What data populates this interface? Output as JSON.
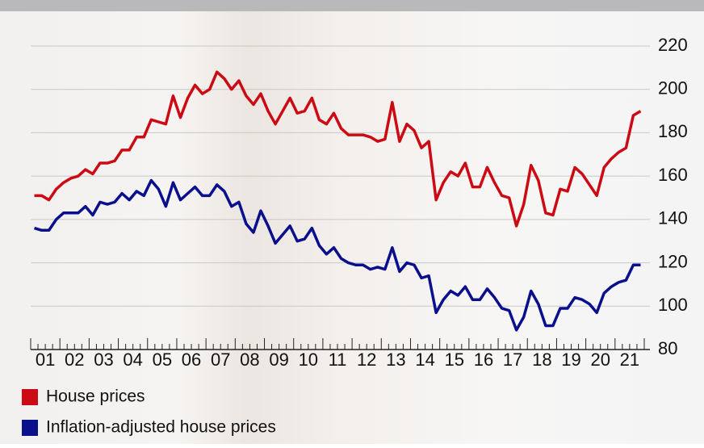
{
  "chart_data": {
    "type": "line",
    "x": [
      2001.125,
      2001.375,
      2001.625,
      2001.875,
      2002.125,
      2002.375,
      2002.625,
      2002.875,
      2003.125,
      2003.375,
      2003.625,
      2003.875,
      2004.125,
      2004.375,
      2004.625,
      2004.875,
      2005.125,
      2005.375,
      2005.625,
      2005.875,
      2006.125,
      2006.375,
      2006.625,
      2006.875,
      2007.125,
      2007.375,
      2007.625,
      2007.875,
      2008.125,
      2008.375,
      2008.625,
      2008.875,
      2009.125,
      2009.375,
      2009.625,
      2009.875,
      2010.125,
      2010.375,
      2010.625,
      2010.875,
      2011.125,
      2011.375,
      2011.625,
      2011.875,
      2012.125,
      2012.375,
      2012.625,
      2012.875,
      2013.125,
      2013.375,
      2013.625,
      2013.875,
      2014.125,
      2014.375,
      2014.625,
      2014.875,
      2015.125,
      2015.375,
      2015.625,
      2015.875,
      2016.125,
      2016.375,
      2016.625,
      2016.875,
      2017.125,
      2017.375,
      2017.625,
      2017.875,
      2018.125,
      2018.375,
      2018.625,
      2018.875,
      2019.125,
      2019.375,
      2019.625,
      2019.875,
      2020.125,
      2020.375,
      2020.625,
      2020.875,
      2021.125,
      2021.375,
      2021.625,
      2021.875
    ],
    "series": [
      {
        "name": "House prices",
        "color": "#cc0a14",
        "values": [
          151,
          151,
          149,
          154,
          157,
          159,
          160,
          163,
          161,
          166,
          166,
          167,
          172,
          172,
          178,
          178,
          186,
          185,
          184,
          197,
          187,
          196,
          202,
          198,
          200,
          208,
          205,
          200,
          204,
          197,
          193,
          198,
          190,
          184,
          190,
          196,
          189,
          190,
          196,
          186,
          184,
          189,
          182,
          179,
          179,
          179,
          178,
          176,
          177,
          194,
          176,
          184,
          181,
          173,
          176,
          149,
          157,
          162,
          160,
          166,
          155,
          155,
          164,
          157,
          151,
          150,
          137,
          147,
          165,
          158,
          143,
          142,
          154,
          153,
          164,
          161,
          156,
          151,
          164,
          168,
          171,
          173,
          188,
          190
        ]
      },
      {
        "name": "Inflation-adjusted house prices",
        "color": "#0a0f8c",
        "values": [
          136,
          135,
          135,
          140,
          143,
          143,
          143,
          146,
          142,
          148,
          147,
          148,
          152,
          149,
          153,
          151,
          158,
          154,
          146,
          157,
          149,
          152,
          155,
          151,
          151,
          156,
          153,
          146,
          148,
          138,
          134,
          144,
          137,
          129,
          133,
          137,
          130,
          131,
          136,
          128,
          124,
          127,
          122,
          120,
          119,
          119,
          117,
          118,
          117,
          127,
          116,
          120,
          119,
          113,
          114,
          97,
          103,
          107,
          105,
          109,
          103,
          103,
          108,
          104,
          99,
          98,
          89,
          95,
          107,
          101,
          91,
          91,
          99,
          99,
          104,
          103,
          101,
          97,
          106,
          109,
          111,
          112,
          119,
          119
        ]
      }
    ],
    "xlim": [
      2001,
      2022
    ],
    "xticks": [
      {
        "value": 2001.5,
        "label": "01"
      },
      {
        "value": 2002.5,
        "label": "02"
      },
      {
        "value": 2003.5,
        "label": "03"
      },
      {
        "value": 2004.5,
        "label": "04"
      },
      {
        "value": 2005.5,
        "label": "05"
      },
      {
        "value": 2006.5,
        "label": "06"
      },
      {
        "value": 2007.5,
        "label": "07"
      },
      {
        "value": 2008.5,
        "label": "08"
      },
      {
        "value": 2009.5,
        "label": "09"
      },
      {
        "value": 2010.5,
        "label": "10"
      },
      {
        "value": 2011.5,
        "label": "11"
      },
      {
        "value": 2012.5,
        "label": "12"
      },
      {
        "value": 2013.5,
        "label": "13"
      },
      {
        "value": 2014.5,
        "label": "14"
      },
      {
        "value": 2015.5,
        "label": "15"
      },
      {
        "value": 2016.5,
        "label": "16"
      },
      {
        "value": 2017.5,
        "label": "17"
      },
      {
        "value": 2018.5,
        "label": "18"
      },
      {
        "value": 2019.5,
        "label": "19"
      },
      {
        "value": 2020.5,
        "label": "20"
      },
      {
        "value": 2021.5,
        "label": "21"
      }
    ],
    "ylim": [
      80,
      220
    ],
    "yticks": [
      80,
      100,
      120,
      140,
      160,
      180,
      200,
      220
    ],
    "grid": true
  }
}
